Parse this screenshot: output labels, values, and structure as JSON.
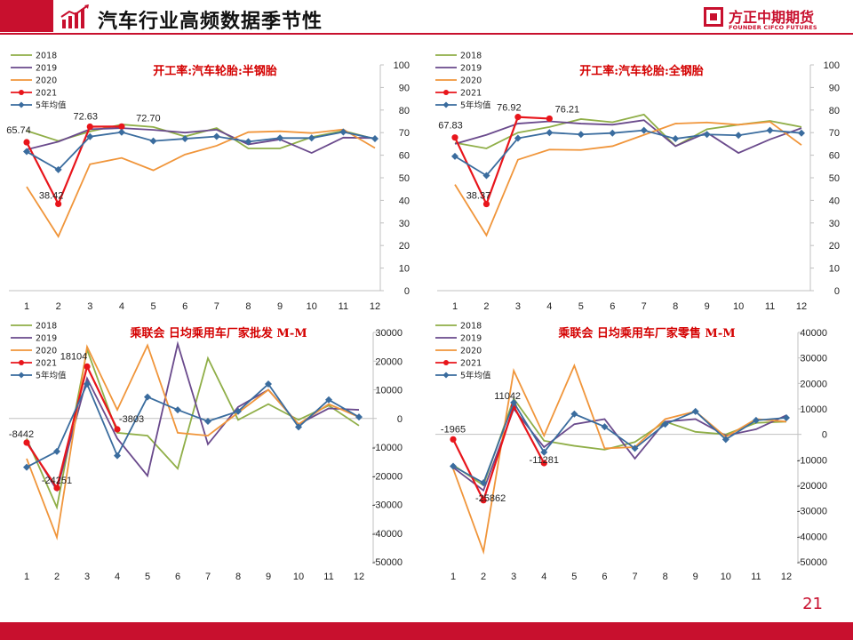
{
  "header": {
    "title": "汽车行业高频数据季节性"
  },
  "logo": {
    "cn": "方正中期期货",
    "en": "FOUNDER CIFCO FUTURES"
  },
  "page_number": "21",
  "colors": {
    "brand": "#c8102e",
    "title_red": "#d40000"
  },
  "chart_data": [
    {
      "type": "line",
      "title": "开工率:汽车轮胎:半钢胎",
      "x": [
        1,
        2,
        3,
        4,
        5,
        6,
        7,
        8,
        9,
        10,
        11,
        12
      ],
      "ylim": [
        0,
        100
      ],
      "yticks": [
        0,
        10,
        20,
        30,
        40,
        50,
        60,
        70,
        80,
        90,
        100
      ],
      "legend": "top-left",
      "series": [
        {
          "name": "2018",
          "color": "#8fae47",
          "values": [
            70.8,
            66.3,
            70.5,
            73.6,
            72.5,
            68.3,
            72.0,
            63.0,
            63.0,
            68.0,
            70.8,
            67.2
          ]
        },
        {
          "name": "2019",
          "color": "#6a4a8c",
          "values": [
            62.5,
            66.0,
            71.5,
            72.0,
            71.2,
            70.0,
            71.3,
            64.8,
            67.0,
            61.0,
            67.8,
            67.6
          ]
        },
        {
          "name": "2020",
          "color": "#f0953a",
          "values": [
            46.0,
            24.0,
            56.0,
            58.8,
            53.3,
            60.3,
            64.2,
            70.2,
            70.6,
            69.8,
            71.4,
            63.2
          ]
        },
        {
          "name": "2021",
          "color": "#e8151b",
          "values": [
            65.74,
            38.42,
            72.63,
            72.7,
            null,
            null,
            null,
            null,
            null,
            null,
            null,
            null
          ]
        },
        {
          "name": "5年均值",
          "color": "#3a6c9e",
          "values": [
            61.6,
            53.6,
            68.2,
            70.2,
            66.3,
            67.3,
            68.3,
            66.0,
            67.6,
            67.6,
            70.3,
            67.3
          ]
        }
      ],
      "data_labels": [
        {
          "series": "2021",
          "x": 1,
          "text": "65.74"
        },
        {
          "series": "2021",
          "x": 2,
          "text": "38.42"
        },
        {
          "series": "2021",
          "x": 3,
          "text": "72.63"
        },
        {
          "series": "2021",
          "x": 4,
          "text": "72.70"
        }
      ]
    },
    {
      "type": "line",
      "title": "开工率:汽车轮胎:全钢胎",
      "x": [
        1,
        2,
        3,
        4,
        5,
        6,
        7,
        8,
        9,
        10,
        11,
        12
      ],
      "ylim": [
        0,
        100
      ],
      "yticks": [
        0,
        10,
        20,
        30,
        40,
        50,
        60,
        70,
        80,
        90,
        100
      ],
      "legend": "top-left",
      "series": [
        {
          "name": "2018",
          "color": "#8fae47",
          "values": [
            65.5,
            63.0,
            70.0,
            72.5,
            76.0,
            74.6,
            78.0,
            64.0,
            71.5,
            73.5,
            75.2,
            72.5
          ]
        },
        {
          "name": "2019",
          "color": "#6a4a8c",
          "values": [
            65.0,
            69.0,
            74.0,
            75.0,
            74.0,
            73.5,
            75.5,
            64.0,
            70.0,
            61.0,
            67.0,
            72.0
          ]
        },
        {
          "name": "2020",
          "color": "#f0953a",
          "values": [
            47.0,
            24.5,
            58.0,
            62.5,
            62.3,
            64.0,
            69.0,
            74.0,
            74.5,
            73.5,
            74.8,
            64.5
          ]
        },
        {
          "name": "2021",
          "color": "#e8151b",
          "values": [
            67.83,
            38.37,
            76.92,
            76.21,
            null,
            null,
            null,
            null,
            null,
            null,
            null,
            null
          ]
        },
        {
          "name": "5年均值",
          "color": "#3a6c9e",
          "values": [
            59.5,
            51.0,
            67.5,
            70.0,
            69.2,
            69.8,
            71.0,
            67.3,
            69.2,
            68.8,
            71.0,
            69.8
          ]
        }
      ],
      "data_labels": [
        {
          "series": "2021",
          "x": 1,
          "text": "67.83"
        },
        {
          "series": "2021",
          "x": 2,
          "text": "38.37"
        },
        {
          "series": "2021",
          "x": 3,
          "text": "76.92"
        },
        {
          "series": "2021",
          "x": 4,
          "text": "76.21"
        }
      ]
    },
    {
      "type": "line",
      "title": "乘联会 日均乘用车厂家批发 M-M",
      "x": [
        1,
        2,
        3,
        4,
        5,
        6,
        7,
        8,
        9,
        10,
        11,
        12
      ],
      "ylim": [
        -50000,
        30000
      ],
      "yticks": [
        -50000,
        -40000,
        -30000,
        -20000,
        -10000,
        0,
        10000,
        20000,
        30000
      ],
      "legend": "top-left",
      "series": [
        {
          "name": "2018",
          "color": "#8fae47",
          "values": [
            -7000,
            -31000,
            24000,
            -5000,
            -6000,
            -17500,
            21000,
            -500,
            5000,
            -500,
            4500,
            -2500
          ]
        },
        {
          "name": "2019",
          "color": "#6a4a8c",
          "values": [
            -8000,
            -25000,
            14000,
            -7000,
            -20000,
            26000,
            -9000,
            4000,
            10000,
            -2000,
            3500,
            3000
          ]
        },
        {
          "name": "2020",
          "color": "#f0953a",
          "values": [
            -14000,
            -41500,
            25000,
            3000,
            25500,
            -5000,
            -6000,
            2000,
            10000,
            -2000,
            5000,
            500
          ]
        },
        {
          "name": "2021",
          "color": "#e8151b",
          "values": [
            -8442,
            -24251,
            18104,
            -3803,
            null,
            null,
            null,
            null,
            null,
            null,
            null,
            null
          ]
        },
        {
          "name": "5年均值",
          "color": "#3a6c9e",
          "values": [
            -17000,
            -11500,
            12000,
            -13000,
            7500,
            3000,
            -1000,
            2500,
            12000,
            -3000,
            6500,
            500
          ]
        }
      ],
      "data_labels": [
        {
          "series": "2021",
          "x": 1,
          "text": "-8442"
        },
        {
          "series": "2021",
          "x": 2,
          "text": "-24251"
        },
        {
          "series": "2021",
          "x": 3,
          "text": "18104"
        },
        {
          "series": "2021",
          "x": 4,
          "text": "-3803"
        }
      ]
    },
    {
      "type": "line",
      "title": "乘联会 日均乘用车厂家零售 M-M",
      "x": [
        1,
        2,
        3,
        4,
        5,
        6,
        7,
        8,
        9,
        10,
        11,
        12
      ],
      "ylim": [
        -50000,
        40000
      ],
      "yticks": [
        -50000,
        -40000,
        -30000,
        -20000,
        -10000,
        0,
        10000,
        20000,
        30000,
        40000
      ],
      "legend": "top-left",
      "series": [
        {
          "name": "2018",
          "color": "#8fae47",
          "values": [
            -12000,
            -20000,
            14000,
            -2500,
            -4500,
            -6000,
            -3000,
            5000,
            1000,
            0,
            4500,
            5000
          ]
        },
        {
          "name": "2019",
          "color": "#6a4a8c",
          "values": [
            -13000,
            -22000,
            10000,
            -5000,
            4000,
            6000,
            -9500,
            5000,
            6000,
            -500,
            2000,
            7500
          ]
        },
        {
          "name": "2020",
          "color": "#f0953a",
          "values": [
            -13500,
            -46000,
            25000,
            -500,
            27000,
            -5500,
            -5000,
            6000,
            9000,
            -1000,
            6000,
            5000
          ]
        },
        {
          "name": "2021",
          "color": "#e8151b",
          "values": [
            -1965,
            -25862,
            11042,
            -11281,
            null,
            null,
            null,
            null,
            null,
            null,
            null,
            null
          ]
        },
        {
          "name": "5年均值",
          "color": "#3a6c9e",
          "values": [
            -12500,
            -19000,
            12500,
            -7000,
            8000,
            3000,
            -5500,
            4000,
            9000,
            -2000,
            5500,
            6500
          ]
        }
      ],
      "data_labels": [
        {
          "series": "2021",
          "x": 1,
          "text": "-1965"
        },
        {
          "series": "2021",
          "x": 2,
          "text": "-25862"
        },
        {
          "series": "2021",
          "x": 3,
          "text": "11042"
        },
        {
          "series": "2021",
          "x": 4,
          "text": "-11281"
        }
      ]
    }
  ]
}
